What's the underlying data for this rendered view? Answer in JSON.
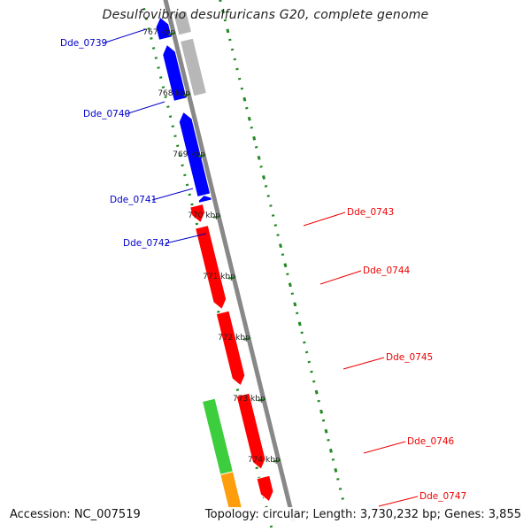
{
  "title": "Desulfovibrio desulfuricans G20, complete genome",
  "footer": {
    "accession": "Accession: NC_007519",
    "summary": "Topology: circular; Length: 3,730,232 bp; Genes: 3,855"
  },
  "colors": {
    "forward_gene": "#ff0000",
    "reverse_gene": "#0000ff",
    "grey_feature": "#b4b4b4",
    "green_feature": "#33cc33",
    "orange_feature": "#ff9900",
    "backbone": "#888888",
    "gc_tick": "#228822"
  },
  "ticks": [
    {
      "kbp": 767,
      "label": "767 kbp"
    },
    {
      "kbp": 768,
      "label": "768 kbp"
    },
    {
      "kbp": 769,
      "label": "769 kbp"
    },
    {
      "kbp": 770,
      "label": "770 kbp"
    },
    {
      "kbp": 771,
      "label": "771 kbp"
    },
    {
      "kbp": 772,
      "label": "772 kbp"
    },
    {
      "kbp": 773,
      "label": "773 kbp"
    },
    {
      "kbp": 774,
      "label": "774 kbp"
    }
  ],
  "genes": [
    {
      "name": "Dde_0739",
      "strand": "reverse",
      "start_kbp": 766.7,
      "end_kbp": 767.05
    },
    {
      "name": "Dde_0740",
      "strand": "reverse",
      "start_kbp": 767.15,
      "end_kbp": 768.05
    },
    {
      "name": "Dde_0741",
      "strand": "reverse",
      "start_kbp": 768.25,
      "end_kbp": 769.62
    },
    {
      "name": "Dde_0742",
      "strand": "reverse",
      "start_kbp": 769.62,
      "end_kbp": 769.72
    },
    {
      "name": "Dde_0743",
      "strand": "forward",
      "start_kbp": 769.75,
      "end_kbp": 770.03
    },
    {
      "name": "Dde_0744",
      "strand": "forward",
      "start_kbp": 770.1,
      "end_kbp": 771.45
    },
    {
      "name": "Dde_0745",
      "strand": "forward",
      "start_kbp": 771.5,
      "end_kbp": 772.7
    },
    {
      "name": "Dde_0746",
      "strand": "forward",
      "start_kbp": 772.85,
      "end_kbp": 774.07
    },
    {
      "name": "Dde_0747",
      "strand": "forward",
      "start_kbp": 774.2,
      "end_kbp": 774.6
    }
  ],
  "other_features": [
    {
      "track": "grey",
      "start_kbp": 766.7,
      "end_kbp": 767.05
    },
    {
      "track": "grey",
      "start_kbp": 767.15,
      "end_kbp": 768.05
    },
    {
      "track": "green",
      "start_kbp": 772.8,
      "end_kbp": 774.0
    },
    {
      "track": "orange",
      "start_kbp": 774.0,
      "end_kbp": 774.6
    }
  ]
}
